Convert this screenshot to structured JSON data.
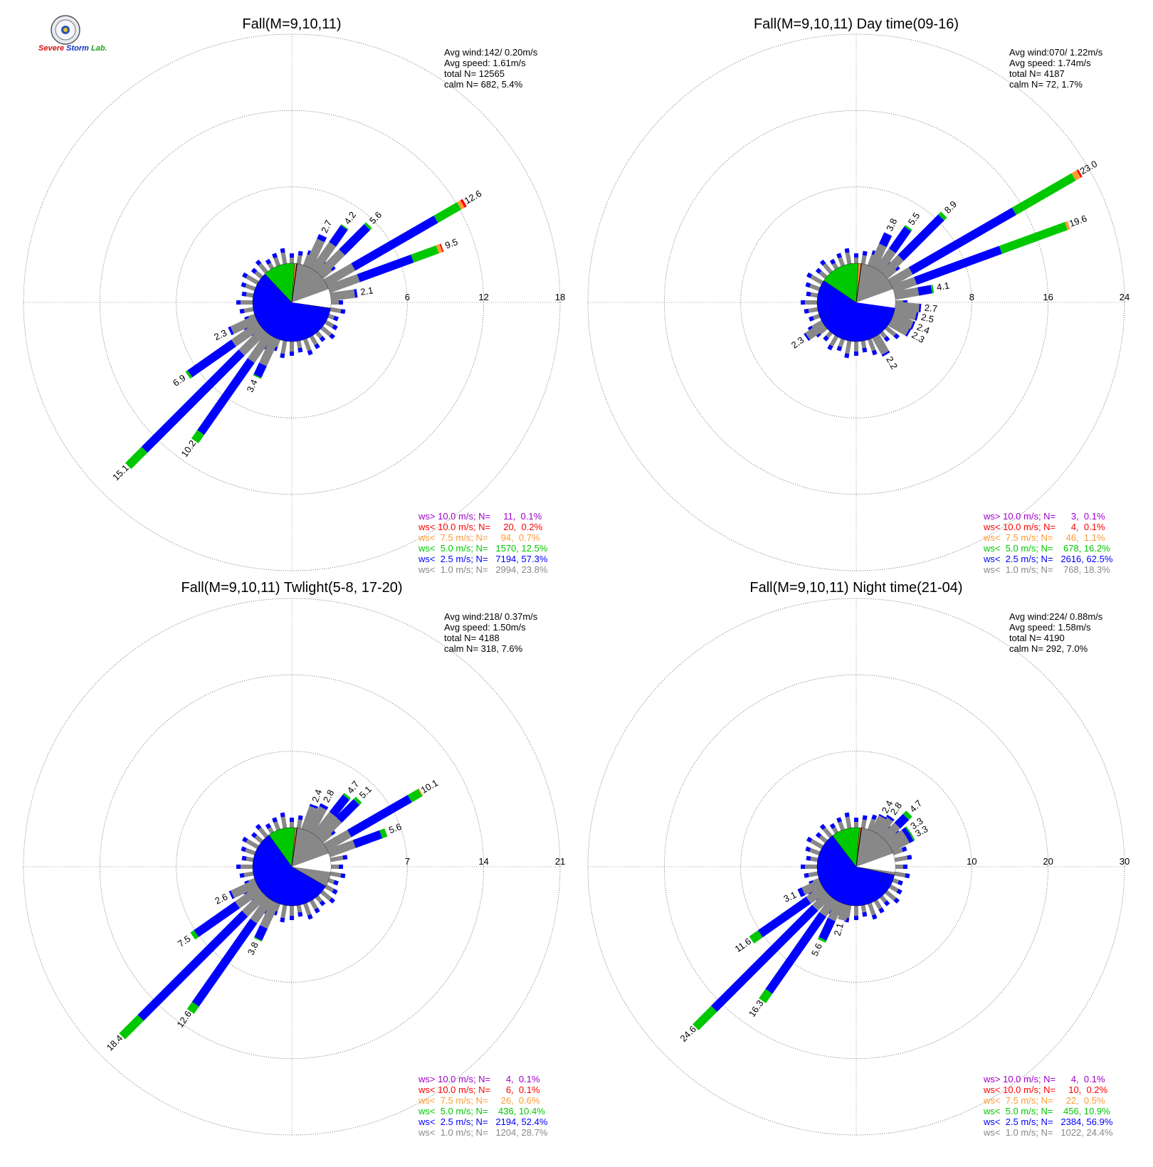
{
  "logo": {
    "text_severe": "Severe",
    "text_storm": "Storm",
    "text_lab": "Lab."
  },
  "colors": {
    "gt10": "#a000c8",
    "lt10": "#ff0000",
    "lt7_5": "#ff9a33",
    "lt5": "#00c800",
    "lt2_5": "#0000ff",
    "lt1": "#888888",
    "grid": "#888888"
  },
  "chart_data": [
    {
      "type": "windrose",
      "title": "Fall(M=9,10,11)",
      "rings": [
        "6",
        "12",
        "18"
      ],
      "rmax": 18,
      "stats": [
        "Avg wind:142/ 0.20m/s",
        "Avg speed: 1.61m/s",
        "total N=      12565",
        "calm N=    682,   5.4%"
      ],
      "legend": [
        "ws> 10.0 m/s; N=     11,  0.1%",
        "ws< 10.0 m/s; N=     20,  0.2%",
        "ws<  7.5 m/s; N=     94,  0.7%",
        "ws<  5.0 m/s; N=   1570, 12.5%",
        "ws<  2.5 m/s; N=   7194, 57.3%",
        "ws<  1.0 m/s; N=   2994, 23.8%"
      ],
      "pie": [
        23.8,
        57.3,
        12.5,
        0.7,
        0.2,
        0.1
      ],
      "bars": [
        {
          "dir": 60,
          "segments": [
            2.5,
            7.5,
            2.1,
            0.3,
            0.2
          ],
          "label": "12.6"
        },
        {
          "dir": 70,
          "segments": [
            2.5,
            4.5,
            2.1,
            0.3,
            0.1
          ],
          "label": "9.5"
        },
        {
          "dir": 45,
          "segments": [
            2.5,
            2.8,
            0.2
          ],
          "label": "5.6"
        },
        {
          "dir": 35,
          "segments": [
            2.5,
            1.6,
            0.1
          ],
          "label": "4.2"
        },
        {
          "dir": 25,
          "segments": [
            2.3,
            0.4
          ],
          "label": "2.7"
        },
        {
          "dir": 82,
          "segments": [
            1.9,
            0.2
          ],
          "label": "2.1"
        },
        {
          "dir": 225,
          "segments": [
            2.5,
            10.8,
            1.8
          ],
          "label": "15.1"
        },
        {
          "dir": 215,
          "segments": [
            2.5,
            6.9,
            0.8
          ],
          "label": "10.2"
        },
        {
          "dir": 235,
          "segments": [
            2.5,
            4.2,
            0.2
          ],
          "label": "6.9"
        },
        {
          "dir": 205,
          "segments": [
            2.3,
            1.0,
            0.1
          ],
          "label": "3.4"
        },
        {
          "dir": 245,
          "segments": [
            2.1,
            0.2
          ],
          "label": "2.3"
        }
      ]
    },
    {
      "type": "windrose",
      "title": "Fall(M=9,10,11) Day time(09-16)",
      "rings": [
        "8",
        "16",
        "24"
      ],
      "rmax": 24,
      "stats": [
        "Avg wind:070/ 1.22m/s",
        "Avg speed: 1.74m/s",
        "total N=      4187",
        "calm N=    72,   1.7%"
      ],
      "legend": [
        "ws> 10.0 m/s; N=      3,  0.1%",
        "ws< 10.0 m/s; N=      4,  0.1%",
        "ws<  7.5 m/s; N=     46,  1.1%",
        "ws<  5.0 m/s; N=    678, 16.2%",
        "ws<  2.5 m/s; N=   2616, 62.5%",
        "ws<  1.0 m/s; N=    768, 18.3%"
      ],
      "pie": [
        18.3,
        62.5,
        16.2,
        1.1,
        0.1,
        0.1
      ],
      "bars": [
        {
          "dir": 60,
          "segments": [
            2.5,
            12.5,
            7.2,
            0.6,
            0.2
          ],
          "label": "23.0"
        },
        {
          "dir": 70,
          "segments": [
            2.5,
            9.5,
            7.3,
            0.3
          ],
          "label": "19.6"
        },
        {
          "dir": 45,
          "segments": [
            2.5,
            6.0,
            0.4
          ],
          "label": "8.9"
        },
        {
          "dir": 35,
          "segments": [
            2.5,
            2.8,
            0.2
          ],
          "label": "5.5"
        },
        {
          "dir": 25,
          "segments": [
            2.5,
            1.3
          ],
          "label": "3.8"
        },
        {
          "dir": 80,
          "segments": [
            2.5,
            1.4,
            0.2
          ],
          "label": "4.1"
        },
        {
          "dir": 95,
          "segments": [
            2.5,
            0.2
          ],
          "label": "2.7"
        },
        {
          "dir": 103,
          "segments": [
            2.3,
            0.2
          ],
          "label": "2.5"
        },
        {
          "dir": 112,
          "segments": [
            2.2,
            0.2
          ],
          "label": "2.4"
        },
        {
          "dir": 120,
          "segments": [
            2.1,
            0.2
          ],
          "label": "2.3"
        },
        {
          "dir": 150,
          "segments": [
            2.0,
            0.2
          ],
          "label": "2.2"
        },
        {
          "dir": 235,
          "segments": [
            2.1,
            0.2
          ],
          "label": "2.3"
        }
      ]
    },
    {
      "type": "windrose",
      "title": "Fall(M=9,10,11) Twlight(5-8, 17-20)",
      "rings": [
        "7",
        "14",
        "21"
      ],
      "rmax": 21,
      "stats": [
        "Avg wind:218/ 0.37m/s",
        "Avg speed: 1.50m/s",
        "total N=      4188",
        "calm N=    318,   7.6%"
      ],
      "legend": [
        "ws> 10.0 m/s; N=      4,  0.1%",
        "ws< 10.0 m/s; N=      6,  0.1%",
        "ws<  7.5 m/s; N=     26,  0.6%",
        "ws<  5.0 m/s; N=    436, 10.4%",
        "ws<  2.5 m/s; N=   2194, 52.4%",
        "ws<  1.0 m/s; N=   1204, 28.7%"
      ],
      "pie": [
        28.7,
        52.4,
        10.4,
        0.6,
        0.1,
        0.1
      ],
      "bars": [
        {
          "dir": 60,
          "segments": [
            2.5,
            6.4,
            1.1,
            0.1
          ],
          "label": "10.1"
        },
        {
          "dir": 70,
          "segments": [
            2.5,
            2.6,
            0.5
          ],
          "label": "5.6"
        },
        {
          "dir": 45,
          "segments": [
            2.5,
            2.3,
            0.3
          ],
          "label": "5.1"
        },
        {
          "dir": 38,
          "segments": [
            2.5,
            2.0,
            0.2
          ],
          "label": "4.7"
        },
        {
          "dir": 28,
          "segments": [
            2.5,
            0.3
          ],
          "label": "2.8"
        },
        {
          "dir": 20,
          "segments": [
            2.2,
            0.2
          ],
          "label": "2.4"
        },
        {
          "dir": 225,
          "segments": [
            2.5,
            13.5,
            2.4
          ],
          "label": "18.4"
        },
        {
          "dir": 215,
          "segments": [
            2.5,
            9.3,
            0.8
          ],
          "label": "12.6"
        },
        {
          "dir": 235,
          "segments": [
            2.5,
            4.6,
            0.4
          ],
          "label": "7.5"
        },
        {
          "dir": 205,
          "segments": [
            2.5,
            1.2,
            0.1
          ],
          "label": "3.8"
        },
        {
          "dir": 245,
          "segments": [
            2.4,
            0.2
          ],
          "label": "2.6"
        }
      ]
    },
    {
      "type": "windrose",
      "title": "Fall(M=9,10,11) Night time(21-04)",
      "rings": [
        "10",
        "20",
        "30"
      ],
      "rmax": 30,
      "stats": [
        "Avg wind:224/ 0.88m/s",
        "Avg speed: 1.58m/s",
        "total N=      4190",
        "calm N=    292,   7.0%"
      ],
      "legend": [
        "ws> 10.0 m/s; N=      4,  0.1%",
        "ws< 10.0 m/s; N=     10,  0.2%",
        "ws<  7.5 m/s; N=     22,  0.5%",
        "ws<  5.0 m/s; N=    456, 10.9%",
        "ws<  2.5 m/s; N=   2384, 56.9%",
        "ws<  1.0 m/s; N=   1022, 24.4%"
      ],
      "pie": [
        24.4,
        56.9,
        10.9,
        0.5,
        0.2,
        0.1
      ],
      "bars": [
        {
          "dir": 225,
          "segments": [
            2.5,
            18.7,
            3.4
          ],
          "label": "24.6"
        },
        {
          "dir": 215,
          "segments": [
            2.5,
            12.3,
            1.5
          ],
          "label": "16.3"
        },
        {
          "dir": 235,
          "segments": [
            2.5,
            7.7,
            1.4
          ],
          "label": "11.6"
        },
        {
          "dir": 205,
          "segments": [
            2.5,
            2.8,
            0.3
          ],
          "label": "5.6"
        },
        {
          "dir": 195,
          "segments": [
            2.1
          ],
          "label": "2.1"
        },
        {
          "dir": 245,
          "segments": [
            2.5,
            0.6
          ],
          "label": "3.1"
        },
        {
          "dir": 45,
          "segments": [
            2.5,
            1.6,
            0.6
          ],
          "label": "4.7"
        },
        {
          "dir": 55,
          "segments": [
            2.5,
            0.6,
            0.2
          ],
          "label": "3.3"
        },
        {
          "dir": 62,
          "segments": [
            2.5,
            0.6,
            0.2
          ],
          "label": "3.3"
        },
        {
          "dir": 35,
          "segments": [
            2.5,
            0.3
          ],
          "label": "2.8"
        },
        {
          "dir": 28,
          "segments": [
            2.2,
            0.2
          ],
          "label": "2.4"
        }
      ]
    }
  ]
}
